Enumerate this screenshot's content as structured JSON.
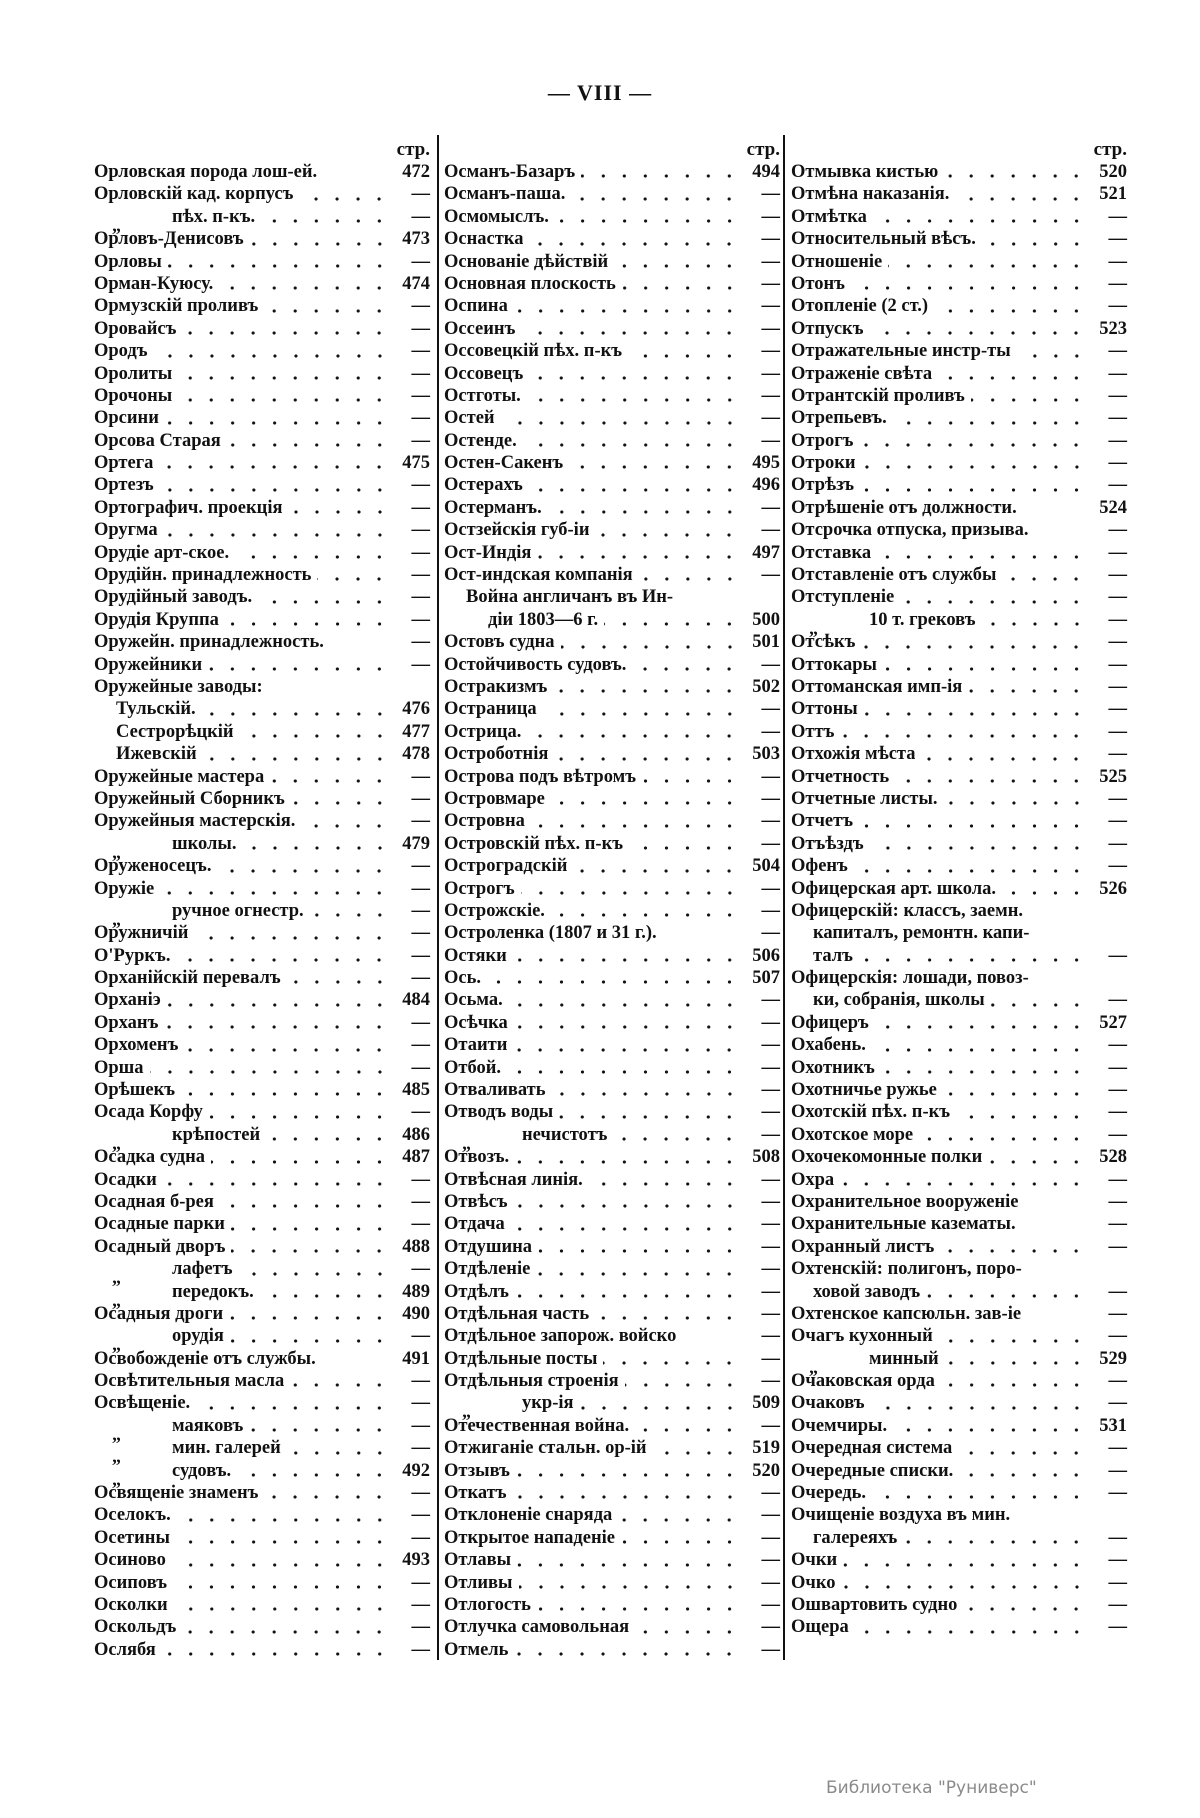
{
  "page_title": "— VIII —",
  "page_header": "стр.",
  "watermark": "Библиотека \"Руниверс\"",
  "columns": [
    {
      "rows": [
        {
          "text": "Орловская порода лош-ей.",
          "page": "472",
          "leader": false
        },
        {
          "text": "Орловскій кад. корпусъ",
          "page": "—"
        },
        {
          "ditto": "„",
          "text": "пѣх. п-къ.",
          "page": "—",
          "level": "sub"
        },
        {
          "text": "Орловъ-Денисовъ",
          "page": "473"
        },
        {
          "text": "Орловы",
          "page": "—"
        },
        {
          "text": "Орман-Куюсу.",
          "page": "474"
        },
        {
          "text": "Ормузскій проливъ",
          "page": "—"
        },
        {
          "text": "Оровайсъ",
          "page": "—"
        },
        {
          "text": "Ородъ",
          "page": "—"
        },
        {
          "text": "Оролиты",
          "page": "—"
        },
        {
          "text": "Орочоны",
          "page": "—"
        },
        {
          "text": "Орсини",
          "page": "—"
        },
        {
          "text": "Орсова Старая",
          "page": "—"
        },
        {
          "text": "Ортега",
          "page": "475"
        },
        {
          "text": "Ортезъ",
          "page": "—"
        },
        {
          "text": "Ортографич. проекція",
          "page": "—"
        },
        {
          "text": "Оругма",
          "page": "—"
        },
        {
          "text": "Орудіе арт-ское.",
          "page": "—"
        },
        {
          "text": "Орудійн. принадлежность",
          "page": "—"
        },
        {
          "text": "Орудійный заводъ.",
          "page": "—"
        },
        {
          "text": "Орудія Круппа",
          "page": "—"
        },
        {
          "text": "Оружейн. принадлежность.",
          "page": "—",
          "leader": false
        },
        {
          "text": "Оружейники",
          "page": "—"
        },
        {
          "text": "Оружейные заводы:",
          "page": ""
        },
        {
          "text": "Тульскій.",
          "page": "476",
          "level": "sub1"
        },
        {
          "text": "Сестрорѣцкій",
          "page": "477",
          "level": "sub1"
        },
        {
          "text": "Ижевскій",
          "page": "478",
          "level": "sub1"
        },
        {
          "text": "Оружейные мастера",
          "page": "—"
        },
        {
          "text": "Оружейный Сборникъ",
          "page": "—"
        },
        {
          "text": "Оружейныя мастерскія.",
          "page": "—"
        },
        {
          "ditto": "„",
          "text": "школы.",
          "page": "479",
          "level": "sub"
        },
        {
          "text": "Оруженосецъ.",
          "page": "—"
        },
        {
          "text": "Оружіе",
          "page": "—"
        },
        {
          "ditto": "„",
          "text": "ручное огнестр.",
          "page": "—",
          "level": "sub"
        },
        {
          "text": "Оружничій",
          "page": "—"
        },
        {
          "text": "О'Руркъ.",
          "page": "—"
        },
        {
          "text": "Орханійскій перевалъ",
          "page": "—"
        },
        {
          "text": "Орханіэ",
          "page": "484"
        },
        {
          "text": "Орханъ",
          "page": "—"
        },
        {
          "text": "Орхоменъ",
          "page": "—"
        },
        {
          "text": "Орша",
          "page": "—"
        },
        {
          "text": "Орѣшекъ",
          "page": "485"
        },
        {
          "text": "Осада Корфу",
          "page": "—"
        },
        {
          "ditto": "„",
          "text": "крѣпостей",
          "page": "486",
          "level": "sub"
        },
        {
          "text": "Осадка судна",
          "page": "487"
        },
        {
          "text": "Осадки",
          "page": "—"
        },
        {
          "text": "Осадная б-рея",
          "page": "—"
        },
        {
          "text": "Осадные парки",
          "page": "—"
        },
        {
          "text": "Осадный дворъ",
          "page": "488"
        },
        {
          "ditto": "„",
          "text": "лафетъ",
          "page": "—",
          "level": "sub"
        },
        {
          "ditto": "„",
          "text": "передокъ.",
          "page": "489",
          "level": "sub"
        },
        {
          "text": "Осадныя дроги",
          "page": "490"
        },
        {
          "ditto": "„",
          "text": "орудія",
          "page": "—",
          "level": "sub"
        },
        {
          "text": "Освобожденіе отъ службы.",
          "page": "491",
          "leader": false
        },
        {
          "text": "Освѣтительныя масла",
          "page": "—"
        },
        {
          "text": "Освѣщеніе.",
          "page": "—"
        },
        {
          "ditto": "„",
          "text": "маяковъ",
          "page": "—",
          "level": "sub"
        },
        {
          "ditto": "„",
          "text": "мин. галерей",
          "page": "—",
          "level": "sub"
        },
        {
          "ditto": "„",
          "text": "судовъ.",
          "page": "492",
          "level": "sub"
        },
        {
          "text": "Освященіе знаменъ",
          "page": "—"
        },
        {
          "text": "Оселокъ.",
          "page": "—"
        },
        {
          "text": "Осетины",
          "page": "—"
        },
        {
          "text": "Осиново",
          "page": "493"
        },
        {
          "text": "Осиповъ",
          "page": "—"
        },
        {
          "text": "Осколки",
          "page": "—"
        },
        {
          "text": "Оскольдъ",
          "page": "—"
        },
        {
          "text": "Ослябя",
          "page": "—"
        }
      ]
    },
    {
      "rows": [
        {
          "text": "Османъ-Базаръ",
          "page": "494"
        },
        {
          "text": "Османъ-паша.",
          "page": "—"
        },
        {
          "text": "Осмомыслъ.",
          "page": "—"
        },
        {
          "text": "Оснастка",
          "page": "—"
        },
        {
          "text": "Основаніе дѣйствій",
          "page": "—"
        },
        {
          "text": "Основная плоскость",
          "page": "—"
        },
        {
          "text": "Оспина",
          "page": "—"
        },
        {
          "text": "Оссеинъ",
          "page": "—"
        },
        {
          "text": "Оссовецкій пѣх. п-къ",
          "page": "—"
        },
        {
          "text": "Оссовецъ",
          "page": "—"
        },
        {
          "text": "Остготы.",
          "page": "—"
        },
        {
          "text": "Остей",
          "page": "—"
        },
        {
          "text": "Остенде.",
          "page": "—"
        },
        {
          "text": "Остен-Сакенъ",
          "page": "495"
        },
        {
          "text": "Остерахъ",
          "page": "496"
        },
        {
          "text": "Остерманъ.",
          "page": "—"
        },
        {
          "text": "Остзейскія губ-іи",
          "page": "—"
        },
        {
          "text": "Ост-Индія",
          "page": "497"
        },
        {
          "text": "Ост-индская компанія",
          "page": "—"
        },
        {
          "text": "Война англичанъ въ Ин-",
          "page": "",
          "level": "cont"
        },
        {
          "text": "діи 1803—6 г.",
          "page": "500",
          "level": "cont2"
        },
        {
          "text": "Остовъ судна",
          "page": "501"
        },
        {
          "text": "Остойчивость судовъ.",
          "page": "—"
        },
        {
          "text": "Остракизмъ",
          "page": "502"
        },
        {
          "text": "Остраница",
          "page": "—"
        },
        {
          "text": "Острица.",
          "page": "—"
        },
        {
          "text": "Остроботнія",
          "page": "503"
        },
        {
          "text": "Острова подъ вѣтромъ",
          "page": "—"
        },
        {
          "text": "Островмаре",
          "page": "—"
        },
        {
          "text": "Островна",
          "page": "—"
        },
        {
          "text": "Островскій пѣх. п-къ",
          "page": "—"
        },
        {
          "text": "Остроградскій",
          "page": "504"
        },
        {
          "text": "Острогъ",
          "page": "—"
        },
        {
          "text": "Острожскіе.",
          "page": "—"
        },
        {
          "text": "Остроленка (1807 и 31 г.).",
          "page": "—",
          "leader": false
        },
        {
          "text": "Остяки",
          "page": "506"
        },
        {
          "text": "Ось.",
          "page": "507"
        },
        {
          "text": "Осьма.",
          "page": "—"
        },
        {
          "text": "Осѣчка",
          "page": "—"
        },
        {
          "text": "Отаити",
          "page": "—"
        },
        {
          "text": "Отбой.",
          "page": "—"
        },
        {
          "text": "Отваливать",
          "page": "—"
        },
        {
          "text": "Отводъ воды",
          "page": "—"
        },
        {
          "ditto": "„",
          "text": "нечистотъ",
          "page": "—",
          "level": "sub"
        },
        {
          "text": "Отвозъ.",
          "page": "508"
        },
        {
          "text": "Отвѣсная линія.",
          "page": "—"
        },
        {
          "text": "Отвѣсъ",
          "page": "—"
        },
        {
          "text": "Отдача",
          "page": "—"
        },
        {
          "text": "Отдушина",
          "page": "—"
        },
        {
          "text": "Отдѣленіе",
          "page": "—"
        },
        {
          "text": "Отдѣлъ",
          "page": "—"
        },
        {
          "text": "Отдѣльная часть",
          "page": "—"
        },
        {
          "text": "Отдѣльное запорож. войско",
          "page": "—",
          "leader": false
        },
        {
          "text": "Отдѣльные посты",
          "page": "—"
        },
        {
          "text": "Отдѣльныя строенія",
          "page": "—"
        },
        {
          "ditto": "„",
          "text": "укр-ія",
          "page": "509",
          "level": "sub"
        },
        {
          "text": "Отечественная война.",
          "page": "—"
        },
        {
          "text": "Отжиганіе стальн. ор-ій",
          "page": "519"
        },
        {
          "text": "Отзывъ",
          "page": "520"
        },
        {
          "text": "Откатъ",
          "page": "—"
        },
        {
          "text": "Отклоненіе снаряда",
          "page": "—"
        },
        {
          "text": "Открытое нападеніе",
          "page": "—"
        },
        {
          "text": "Отлавы",
          "page": "—"
        },
        {
          "text": "Отливы",
          "page": "—"
        },
        {
          "text": "Отлогость",
          "page": "—"
        },
        {
          "text": "Отлучка самовольная",
          "page": "—"
        },
        {
          "text": "Отмель",
          "page": "—"
        }
      ]
    },
    {
      "rows": [
        {
          "text": "Отмывка кистью",
          "page": "520"
        },
        {
          "text": "Отмѣна наказанія.",
          "page": "521"
        },
        {
          "text": "Отмѣтка",
          "page": "—"
        },
        {
          "text": "Относительный вѣсъ.",
          "page": "—"
        },
        {
          "text": "Отношеніе",
          "page": "—"
        },
        {
          "text": "Отонъ",
          "page": "—"
        },
        {
          "text": "Отопленіе (2 ст.)",
          "page": "—"
        },
        {
          "text": "Отпускъ",
          "page": "523"
        },
        {
          "text": "Отражательные инстр-ты",
          "page": "—"
        },
        {
          "text": "Отраженіе свѣта",
          "page": "—"
        },
        {
          "text": "Отрантскій проливъ",
          "page": "—"
        },
        {
          "text": "Отрепьевъ.",
          "page": "—"
        },
        {
          "text": "Отрогъ",
          "page": "—"
        },
        {
          "text": "Отроки",
          "page": "—"
        },
        {
          "text": "Отрѣзъ",
          "page": "—"
        },
        {
          "text": "Отрѣшеніе отъ должности.",
          "page": "524",
          "leader": false
        },
        {
          "text": "Отсрочка отпуска, призыва.",
          "page": "—",
          "leader": false
        },
        {
          "text": "Отставка",
          "page": "—"
        },
        {
          "text": "Отставленіе отъ службы",
          "page": "—"
        },
        {
          "text": "Отступленіе",
          "page": "—"
        },
        {
          "ditto": "„",
          "text": "10 т. грековъ",
          "page": "—",
          "level": "sub"
        },
        {
          "text": "Отсѣкъ",
          "page": "—"
        },
        {
          "text": "Оттокары",
          "page": "—"
        },
        {
          "text": "Оттоманская имп-ія",
          "page": "—"
        },
        {
          "text": "Оттоны",
          "page": "—"
        },
        {
          "text": "Оттъ",
          "page": "—"
        },
        {
          "text": "Отхожія мѣста",
          "page": "—"
        },
        {
          "text": "Отчетность",
          "page": "525"
        },
        {
          "text": "Отчетные листы.",
          "page": "—"
        },
        {
          "text": "Отчетъ",
          "page": "—"
        },
        {
          "text": "Отъѣздъ",
          "page": "—"
        },
        {
          "text": "Офенъ",
          "page": "—"
        },
        {
          "text": "Офицерская арт. школа.",
          "page": "526"
        },
        {
          "text": "Офицерскій: классъ, заемн.",
          "page": ""
        },
        {
          "text": "капиталъ, ремонтн. капи-",
          "page": "",
          "level": "cont"
        },
        {
          "text": "талъ",
          "page": "—",
          "level": "cont"
        },
        {
          "text": "Офицерскія: лошади, повоз-",
          "page": ""
        },
        {
          "text": "ки, собранія, школы",
          "page": "—",
          "level": "cont"
        },
        {
          "text": "Офицеръ",
          "page": "527"
        },
        {
          "text": "Охабень.",
          "page": "—"
        },
        {
          "text": "Охотникъ",
          "page": "—"
        },
        {
          "text": "Охотничье ружье",
          "page": "—"
        },
        {
          "text": "Охотскій пѣх. п-къ",
          "page": "—"
        },
        {
          "text": "Охотское море",
          "page": "—"
        },
        {
          "text": "Охочекомонные полки",
          "page": "528"
        },
        {
          "text": "Охра",
          "page": "—"
        },
        {
          "text": "Охранительное вооруженіе",
          "page": "—",
          "leader": false
        },
        {
          "text": "Охранительные казематы.",
          "page": "—",
          "leader": false
        },
        {
          "text": "Охранный листъ",
          "page": "—"
        },
        {
          "text": "Охтенскій: полигонъ, поро-",
          "page": ""
        },
        {
          "text": "ховой заводъ",
          "page": "—",
          "level": "cont"
        },
        {
          "text": "Охтенское капсюльн. зав-іе",
          "page": "—",
          "leader": false
        },
        {
          "text": "Очагъ кухонный",
          "page": "—"
        },
        {
          "ditto": "„",
          "text": "минный",
          "page": "529",
          "level": "sub"
        },
        {
          "text": "Очаковская орда",
          "page": "—"
        },
        {
          "text": "Очаковъ",
          "page": "—"
        },
        {
          "text": "Очемчиры.",
          "page": "531"
        },
        {
          "text": "Очередная система",
          "page": "—"
        },
        {
          "text": "Очередные списки.",
          "page": "—"
        },
        {
          "text": "Очередь.",
          "page": "—"
        },
        {
          "text": "Очищеніе воздуха въ мин.",
          "page": ""
        },
        {
          "text": "галереяхъ",
          "page": "—",
          "level": "cont"
        },
        {
          "text": "Очки",
          "page": "—"
        },
        {
          "text": "Очко",
          "page": "—"
        },
        {
          "text": "Ошвартовить судно",
          "page": "—"
        },
        {
          "text": "Ощера",
          "page": "—"
        }
      ]
    }
  ]
}
